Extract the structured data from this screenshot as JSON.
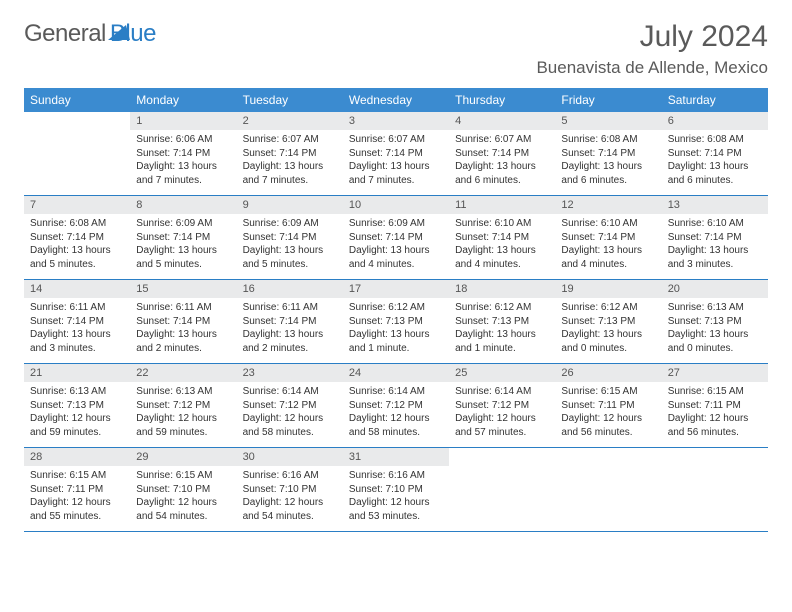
{
  "logo": {
    "text1": "General",
    "text2": "Blue"
  },
  "title": "July 2024",
  "location": "Buenavista de Allende, Mexico",
  "header_bg": "#3b8bd0",
  "accent": "#2a7ec5",
  "daynum_bg": "#e9eaeb",
  "text_color": "#333333",
  "font_size_title": 30,
  "font_size_location": 17,
  "font_size_header": 12,
  "font_size_daynum": 11,
  "font_size_cell": 10,
  "days": [
    "Sunday",
    "Monday",
    "Tuesday",
    "Wednesday",
    "Thursday",
    "Friday",
    "Saturday"
  ],
  "weeks": [
    [
      null,
      {
        "n": "1",
        "sr": "Sunrise: 6:06 AM",
        "ss": "Sunset: 7:14 PM",
        "d1": "Daylight: 13 hours",
        "d2": "and 7 minutes."
      },
      {
        "n": "2",
        "sr": "Sunrise: 6:07 AM",
        "ss": "Sunset: 7:14 PM",
        "d1": "Daylight: 13 hours",
        "d2": "and 7 minutes."
      },
      {
        "n": "3",
        "sr": "Sunrise: 6:07 AM",
        "ss": "Sunset: 7:14 PM",
        "d1": "Daylight: 13 hours",
        "d2": "and 7 minutes."
      },
      {
        "n": "4",
        "sr": "Sunrise: 6:07 AM",
        "ss": "Sunset: 7:14 PM",
        "d1": "Daylight: 13 hours",
        "d2": "and 6 minutes."
      },
      {
        "n": "5",
        "sr": "Sunrise: 6:08 AM",
        "ss": "Sunset: 7:14 PM",
        "d1": "Daylight: 13 hours",
        "d2": "and 6 minutes."
      },
      {
        "n": "6",
        "sr": "Sunrise: 6:08 AM",
        "ss": "Sunset: 7:14 PM",
        "d1": "Daylight: 13 hours",
        "d2": "and 6 minutes."
      }
    ],
    [
      {
        "n": "7",
        "sr": "Sunrise: 6:08 AM",
        "ss": "Sunset: 7:14 PM",
        "d1": "Daylight: 13 hours",
        "d2": "and 5 minutes."
      },
      {
        "n": "8",
        "sr": "Sunrise: 6:09 AM",
        "ss": "Sunset: 7:14 PM",
        "d1": "Daylight: 13 hours",
        "d2": "and 5 minutes."
      },
      {
        "n": "9",
        "sr": "Sunrise: 6:09 AM",
        "ss": "Sunset: 7:14 PM",
        "d1": "Daylight: 13 hours",
        "d2": "and 5 minutes."
      },
      {
        "n": "10",
        "sr": "Sunrise: 6:09 AM",
        "ss": "Sunset: 7:14 PM",
        "d1": "Daylight: 13 hours",
        "d2": "and 4 minutes."
      },
      {
        "n": "11",
        "sr": "Sunrise: 6:10 AM",
        "ss": "Sunset: 7:14 PM",
        "d1": "Daylight: 13 hours",
        "d2": "and 4 minutes."
      },
      {
        "n": "12",
        "sr": "Sunrise: 6:10 AM",
        "ss": "Sunset: 7:14 PM",
        "d1": "Daylight: 13 hours",
        "d2": "and 4 minutes."
      },
      {
        "n": "13",
        "sr": "Sunrise: 6:10 AM",
        "ss": "Sunset: 7:14 PM",
        "d1": "Daylight: 13 hours",
        "d2": "and 3 minutes."
      }
    ],
    [
      {
        "n": "14",
        "sr": "Sunrise: 6:11 AM",
        "ss": "Sunset: 7:14 PM",
        "d1": "Daylight: 13 hours",
        "d2": "and 3 minutes."
      },
      {
        "n": "15",
        "sr": "Sunrise: 6:11 AM",
        "ss": "Sunset: 7:14 PM",
        "d1": "Daylight: 13 hours",
        "d2": "and 2 minutes."
      },
      {
        "n": "16",
        "sr": "Sunrise: 6:11 AM",
        "ss": "Sunset: 7:14 PM",
        "d1": "Daylight: 13 hours",
        "d2": "and 2 minutes."
      },
      {
        "n": "17",
        "sr": "Sunrise: 6:12 AM",
        "ss": "Sunset: 7:13 PM",
        "d1": "Daylight: 13 hours",
        "d2": "and 1 minute."
      },
      {
        "n": "18",
        "sr": "Sunrise: 6:12 AM",
        "ss": "Sunset: 7:13 PM",
        "d1": "Daylight: 13 hours",
        "d2": "and 1 minute."
      },
      {
        "n": "19",
        "sr": "Sunrise: 6:12 AM",
        "ss": "Sunset: 7:13 PM",
        "d1": "Daylight: 13 hours",
        "d2": "and 0 minutes."
      },
      {
        "n": "20",
        "sr": "Sunrise: 6:13 AM",
        "ss": "Sunset: 7:13 PM",
        "d1": "Daylight: 13 hours",
        "d2": "and 0 minutes."
      }
    ],
    [
      {
        "n": "21",
        "sr": "Sunrise: 6:13 AM",
        "ss": "Sunset: 7:13 PM",
        "d1": "Daylight: 12 hours",
        "d2": "and 59 minutes."
      },
      {
        "n": "22",
        "sr": "Sunrise: 6:13 AM",
        "ss": "Sunset: 7:12 PM",
        "d1": "Daylight: 12 hours",
        "d2": "and 59 minutes."
      },
      {
        "n": "23",
        "sr": "Sunrise: 6:14 AM",
        "ss": "Sunset: 7:12 PM",
        "d1": "Daylight: 12 hours",
        "d2": "and 58 minutes."
      },
      {
        "n": "24",
        "sr": "Sunrise: 6:14 AM",
        "ss": "Sunset: 7:12 PM",
        "d1": "Daylight: 12 hours",
        "d2": "and 58 minutes."
      },
      {
        "n": "25",
        "sr": "Sunrise: 6:14 AM",
        "ss": "Sunset: 7:12 PM",
        "d1": "Daylight: 12 hours",
        "d2": "and 57 minutes."
      },
      {
        "n": "26",
        "sr": "Sunrise: 6:15 AM",
        "ss": "Sunset: 7:11 PM",
        "d1": "Daylight: 12 hours",
        "d2": "and 56 minutes."
      },
      {
        "n": "27",
        "sr": "Sunrise: 6:15 AM",
        "ss": "Sunset: 7:11 PM",
        "d1": "Daylight: 12 hours",
        "d2": "and 56 minutes."
      }
    ],
    [
      {
        "n": "28",
        "sr": "Sunrise: 6:15 AM",
        "ss": "Sunset: 7:11 PM",
        "d1": "Daylight: 12 hours",
        "d2": "and 55 minutes."
      },
      {
        "n": "29",
        "sr": "Sunrise: 6:15 AM",
        "ss": "Sunset: 7:10 PM",
        "d1": "Daylight: 12 hours",
        "d2": "and 54 minutes."
      },
      {
        "n": "30",
        "sr": "Sunrise: 6:16 AM",
        "ss": "Sunset: 7:10 PM",
        "d1": "Daylight: 12 hours",
        "d2": "and 54 minutes."
      },
      {
        "n": "31",
        "sr": "Sunrise: 6:16 AM",
        "ss": "Sunset: 7:10 PM",
        "d1": "Daylight: 12 hours",
        "d2": "and 53 minutes."
      },
      null,
      null,
      null
    ]
  ]
}
